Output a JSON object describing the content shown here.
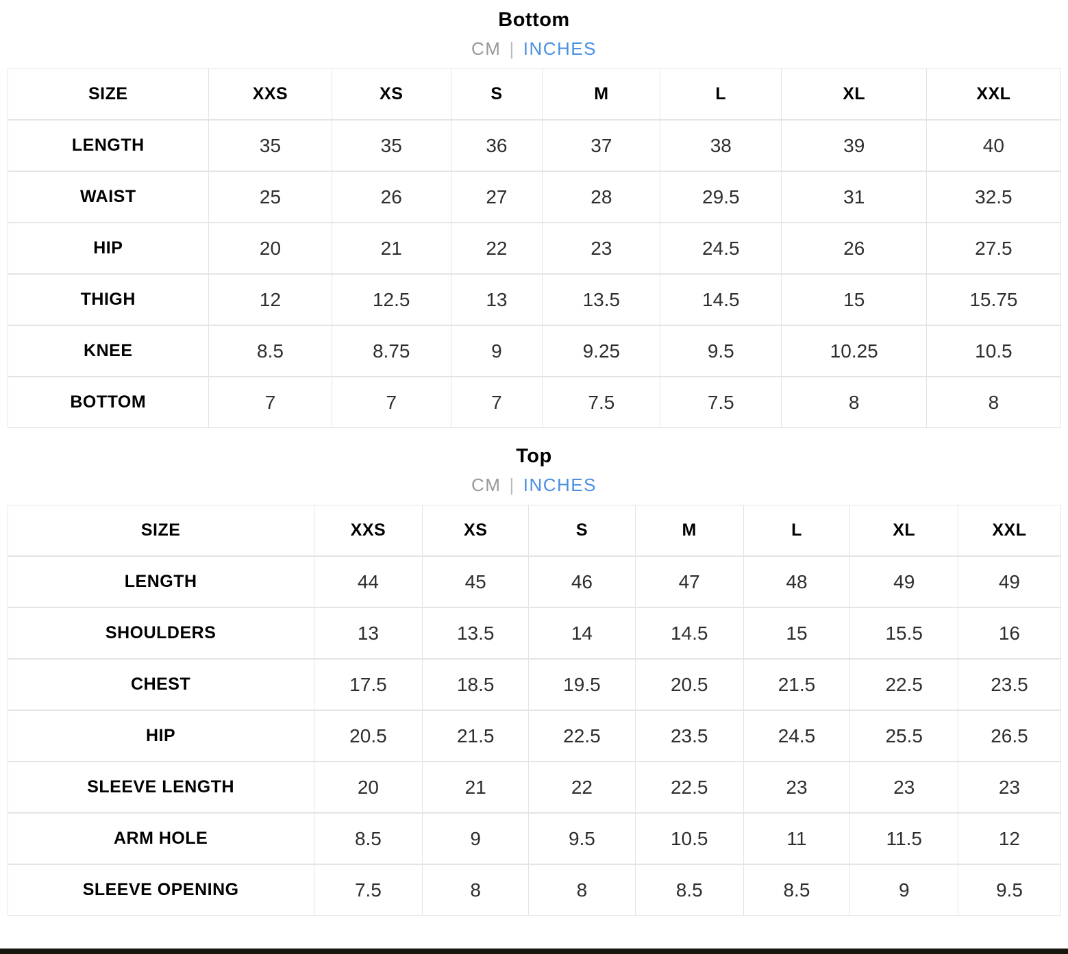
{
  "page": {
    "colors": {
      "active_unit_blue": "#4a90e2",
      "inactive_unit_gray": "#999999",
      "grid_line": "#e4e4e4",
      "title_black": "#000000",
      "bottom_strip_dark": "#17150f"
    },
    "sections": [
      {
        "title": "Bottom",
        "unit_toggle": {
          "cm_label": "CM",
          "divider": "|",
          "inches_label": "INCHES",
          "active_unit": "INCHES"
        },
        "table": {
          "header": [
            "SIZE",
            "XXS",
            "XS",
            "S",
            "M",
            "L",
            "XL",
            "XXL"
          ],
          "rows": [
            {
              "label": "LENGTH",
              "values": [
                "35",
                "35",
                "36",
                "37",
                "38",
                "39",
                "40"
              ]
            },
            {
              "label": "WAIST",
              "values": [
                "25",
                "26",
                "27",
                "28",
                "29.5",
                "31",
                "32.5"
              ]
            },
            {
              "label": "HIP",
              "values": [
                "20",
                "21",
                "22",
                "23",
                "24.5",
                "26",
                "27.5"
              ]
            },
            {
              "label": "THIGH",
              "values": [
                "12",
                "12.5",
                "13",
                "13.5",
                "14.5",
                "15",
                "15.75"
              ]
            },
            {
              "label": "KNEE",
              "values": [
                "8.5",
                "8.75",
                "9",
                "9.25",
                "9.5",
                "10.25",
                "10.5"
              ]
            },
            {
              "label": "BOTTOM",
              "values": [
                "7",
                "7",
                "7",
                "7.5",
                "7.5",
                "8",
                "8"
              ]
            }
          ]
        }
      },
      {
        "title": "Top",
        "unit_toggle": {
          "cm_label": "CM",
          "divider": "|",
          "inches_label": "INCHES",
          "active_unit": "INCHES"
        },
        "table": {
          "header": [
            "SIZE",
            "XXS",
            "XS",
            "S",
            "M",
            "L",
            "XL",
            "XXL"
          ],
          "rows": [
            {
              "label": "LENGTH",
              "values": [
                "44",
                "45",
                "46",
                "47",
                "48",
                "49",
                "49"
              ]
            },
            {
              "label": "SHOULDERS",
              "values": [
                "13",
                "13.5",
                "14",
                "14.5",
                "15",
                "15.5",
                "16"
              ]
            },
            {
              "label": "CHEST",
              "values": [
                "17.5",
                "18.5",
                "19.5",
                "20.5",
                "21.5",
                "22.5",
                "23.5"
              ]
            },
            {
              "label": "HIP",
              "values": [
                "20.5",
                "21.5",
                "22.5",
                "23.5",
                "24.5",
                "25.5",
                "26.5"
              ]
            },
            {
              "label": "SLEEVE LENGTH",
              "values": [
                "20",
                "21",
                "22",
                "22.5",
                "23",
                "23",
                "23"
              ]
            },
            {
              "label": "ARM HOLE",
              "values": [
                "8.5",
                "9",
                "9.5",
                "10.5",
                "11",
                "11.5",
                "12"
              ]
            },
            {
              "label": "SLEEVE OPENING",
              "values": [
                "7.5",
                "8",
                "8",
                "8.5",
                "8.5",
                "9",
                "9.5"
              ]
            }
          ]
        }
      }
    ]
  }
}
